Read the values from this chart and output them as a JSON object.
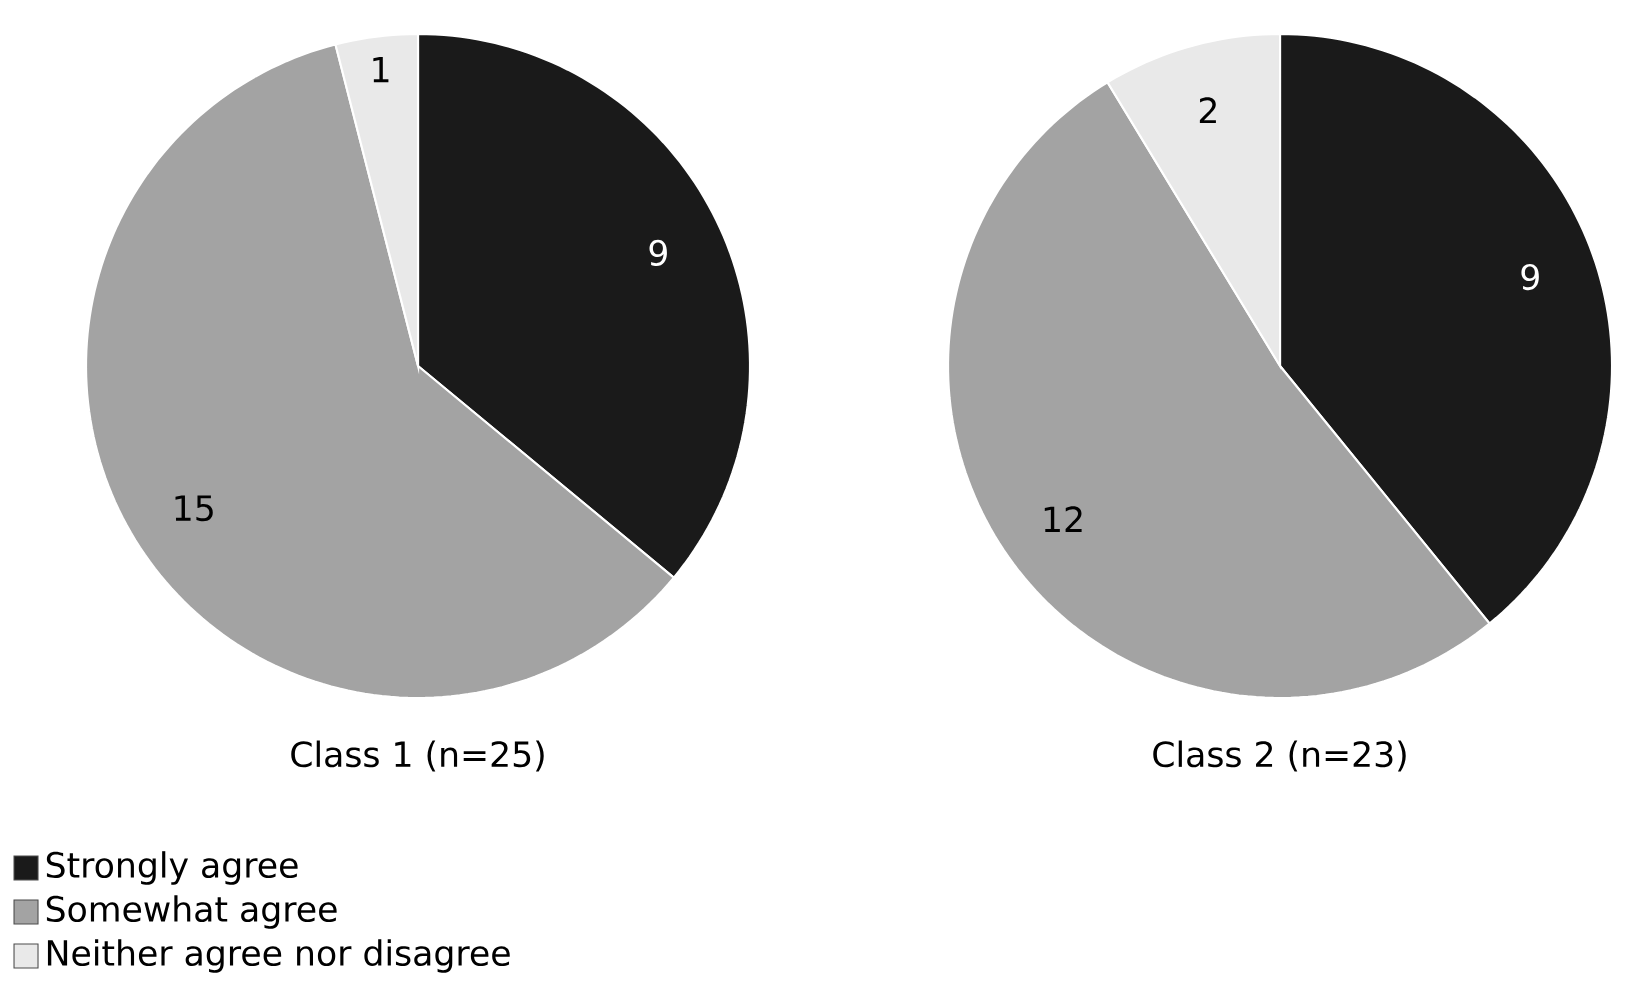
{
  "chart_data": [
    {
      "type": "pie",
      "title": "Class 1 (n=25)",
      "categories": [
        "Strongly agree",
        "Somewhat agree",
        "Neither agree nor disagree"
      ],
      "values": [
        9,
        15,
        1
      ],
      "colors": [
        "#1a1a1a",
        "#a3a3a3",
        "#e9e9e9"
      ],
      "data_labels": true,
      "legend": "bottom left"
    },
    {
      "type": "pie",
      "title": "Class 2 (n=23)",
      "categories": [
        null,
        null,
        null
      ],
      "values": [
        9,
        12,
        2
      ],
      "colors": [
        "#1a1a1a",
        "#a3a3a3",
        "#e9e9e9"
      ],
      "data_labels": true
    }
  ]
}
